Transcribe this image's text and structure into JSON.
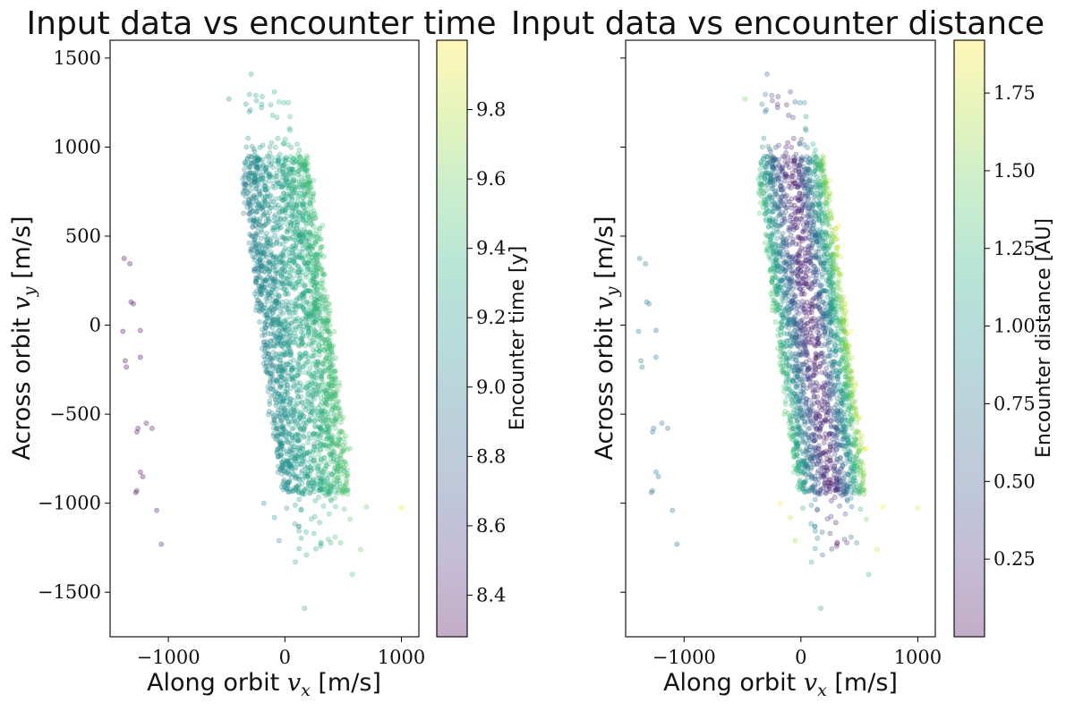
{
  "chart_data": [
    {
      "type": "scatter",
      "title": "Input data vs encounter time",
      "xlabel": "Along orbit $v_x$ [m/s]",
      "xlabel_parts": [
        "Along orbit ",
        "v",
        "x",
        " [m/s]"
      ],
      "ylabel": "Across orbit $v_y$ [m/s]",
      "ylabel_parts": [
        "Across orbit ",
        "v",
        "y",
        " [m/s]"
      ],
      "xlim": [
        -1500,
        1150
      ],
      "ylim": [
        -1750,
        1600
      ],
      "xticks": [
        -1000,
        0,
        1000
      ],
      "xtick_labels": [
        "−1000",
        "0",
        "1000"
      ],
      "yticks": [
        -1500,
        -1000,
        -500,
        0,
        500,
        1000,
        1500
      ],
      "ytick_labels": [
        "−1500",
        "−1000",
        "−500",
        "0",
        "500",
        "1000",
        "1500"
      ],
      "show_yticklabels": true,
      "grid": false,
      "colormap": "viridis",
      "colorbar": {
        "label": "Encounter time [y]",
        "range": [
          8.28,
          10.0
        ],
        "ticks": [
          8.4,
          8.6,
          8.8,
          9.0,
          9.2,
          9.4,
          9.6,
          9.8
        ],
        "tick_labels": [
          "8.4",
          "8.6",
          "8.8",
          "9.0",
          "9.2",
          "9.4",
          "9.6",
          "9.8"
        ]
      },
      "color_mode": "time",
      "outliers": [
        {
          "x": -1380,
          "y": 375,
          "c": 8.3
        },
        {
          "x": -1330,
          "y": 345,
          "c": 8.3
        },
        {
          "x": -1320,
          "y": 130,
          "c": 8.32
        },
        {
          "x": -1300,
          "y": 120,
          "c": 8.31
        },
        {
          "x": -1390,
          "y": -35,
          "c": 8.3
        },
        {
          "x": -1240,
          "y": -30,
          "c": 8.33
        },
        {
          "x": -1240,
          "y": -180,
          "c": 8.32
        },
        {
          "x": -1370,
          "y": -200,
          "c": 8.3
        },
        {
          "x": -1360,
          "y": -235,
          "c": 8.3
        },
        {
          "x": -1190,
          "y": -550,
          "c": 8.35
        },
        {
          "x": -1260,
          "y": -580,
          "c": 8.33
        },
        {
          "x": -1270,
          "y": -600,
          "c": 8.32
        },
        {
          "x": -1140,
          "y": -580,
          "c": 8.34
        },
        {
          "x": -1240,
          "y": -825,
          "c": 8.33
        },
        {
          "x": -1220,
          "y": -850,
          "c": 8.33
        },
        {
          "x": -1270,
          "y": -930,
          "c": 8.31
        },
        {
          "x": -1280,
          "y": -940,
          "c": 8.31
        },
        {
          "x": -1100,
          "y": -1040,
          "c": 8.36
        },
        {
          "x": -1060,
          "y": -1230,
          "c": 8.37
        },
        {
          "x": 1000,
          "y": -1025,
          "c": 9.98
        }
      ]
    },
    {
      "type": "scatter",
      "title": "Input data vs encounter distance",
      "xlabel": "Along orbit $v_x$ [m/s]",
      "xlabel_parts": [
        "Along orbit ",
        "v",
        "x",
        " [m/s]"
      ],
      "ylabel": "Across orbit $v_y$ [m/s]",
      "ylabel_parts": [
        "Across orbit ",
        "v",
        "y",
        " [m/s]"
      ],
      "xlim": [
        -1500,
        1150
      ],
      "ylim": [
        -1750,
        1600
      ],
      "xticks": [
        -1000,
        0,
        1000
      ],
      "xtick_labels": [
        "−1000",
        "0",
        "1000"
      ],
      "yticks": [
        -1500,
        -1000,
        -500,
        0,
        500,
        1000,
        1500
      ],
      "ytick_labels": [],
      "show_yticklabels": false,
      "grid": false,
      "colormap": "viridis",
      "colorbar": {
        "label": "Encounter distance [AU]",
        "range": [
          0.0,
          1.92
        ],
        "ticks": [
          0.25,
          0.5,
          0.75,
          1.0,
          1.25,
          1.5,
          1.75
        ],
        "tick_labels": [
          "0.25",
          "0.50",
          "0.75",
          "1.00",
          "1.25",
          "1.50",
          "1.75"
        ]
      },
      "color_mode": "distance",
      "outliers": [
        {
          "x": -1380,
          "y": 375,
          "c": 0.8
        },
        {
          "x": -1330,
          "y": 345,
          "c": 0.75
        },
        {
          "x": -1320,
          "y": 130,
          "c": 0.78
        },
        {
          "x": -1300,
          "y": 120,
          "c": 0.77
        },
        {
          "x": -1390,
          "y": -35,
          "c": 0.8
        },
        {
          "x": -1240,
          "y": -30,
          "c": 0.72
        },
        {
          "x": -1240,
          "y": -180,
          "c": 0.73
        },
        {
          "x": -1370,
          "y": -200,
          "c": 0.8
        },
        {
          "x": -1360,
          "y": -235,
          "c": 0.8
        },
        {
          "x": -1190,
          "y": -550,
          "c": 0.7
        },
        {
          "x": -1260,
          "y": -580,
          "c": 0.74
        },
        {
          "x": -1270,
          "y": -600,
          "c": 0.74
        },
        {
          "x": -1140,
          "y": -580,
          "c": 0.68
        },
        {
          "x": -1240,
          "y": -825,
          "c": 0.73
        },
        {
          "x": -1220,
          "y": -850,
          "c": 0.72
        },
        {
          "x": -1270,
          "y": -930,
          "c": 0.74
        },
        {
          "x": -1280,
          "y": -940,
          "c": 0.75
        },
        {
          "x": -1100,
          "y": -1040,
          "c": 0.66
        },
        {
          "x": -1060,
          "y": -1230,
          "c": 0.64
        },
        {
          "x": 1000,
          "y": -1025,
          "c": 1.88
        }
      ]
    }
  ]
}
